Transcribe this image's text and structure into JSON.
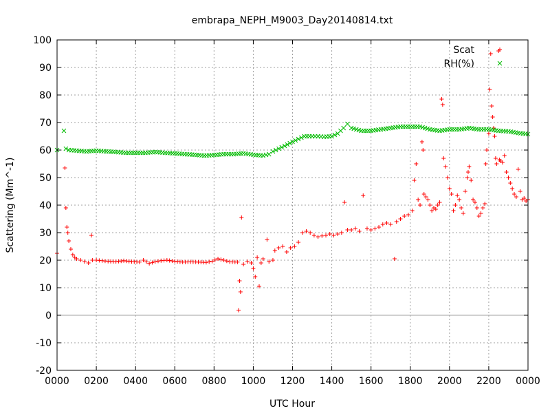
{
  "chart_data": {
    "type": "scatter",
    "title": "embrapa_NEPH_M9003_Day20140814.txt",
    "xlabel": "UTC Hour",
    "ylabel": "Scattering (Mm^-1)",
    "xlim": [
      0,
      24
    ],
    "ylim": [
      -20,
      100
    ],
    "grid": true,
    "legend_position": "top-right",
    "x_ticks": [
      {
        "value": 0,
        "label": "0000"
      },
      {
        "value": 2,
        "label": "0200"
      },
      {
        "value": 4,
        "label": "0400"
      },
      {
        "value": 6,
        "label": "0600"
      },
      {
        "value": 8,
        "label": "0800"
      },
      {
        "value": 10,
        "label": "1000"
      },
      {
        "value": 12,
        "label": "1200"
      },
      {
        "value": 14,
        "label": "1400"
      },
      {
        "value": 16,
        "label": "1600"
      },
      {
        "value": 18,
        "label": "1800"
      },
      {
        "value": 20,
        "label": "2000"
      },
      {
        "value": 22,
        "label": "2200"
      },
      {
        "value": 24,
        "label": "0000"
      }
    ],
    "y_ticks": [
      -20,
      -10,
      0,
      10,
      20,
      30,
      40,
      50,
      60,
      70,
      80,
      90,
      100
    ],
    "series": [
      {
        "name": "Scat",
        "marker": "plus",
        "color": "#ff0000",
        "points": [
          [
            0.0,
            22.5
          ],
          [
            0.4,
            53.5
          ],
          [
            0.45,
            39.0
          ],
          [
            0.5,
            32.0
          ],
          [
            0.55,
            30.0
          ],
          [
            0.6,
            27.0
          ],
          [
            0.7,
            24.0
          ],
          [
            0.8,
            22.0
          ],
          [
            0.9,
            21.0
          ],
          [
            1.0,
            20.5
          ],
          [
            1.2,
            20.0
          ],
          [
            1.4,
            19.5
          ],
          [
            1.6,
            19.0
          ],
          [
            1.75,
            29.0
          ],
          [
            1.8,
            20.0
          ],
          [
            2.0,
            20.0
          ],
          [
            2.3,
            19.8
          ],
          [
            2.6,
            19.6
          ],
          [
            3.0,
            19.5
          ],
          [
            3.4,
            19.8
          ],
          [
            3.8,
            19.5
          ],
          [
            4.2,
            19.3
          ],
          [
            4.4,
            20.0
          ],
          [
            4.7,
            18.8
          ],
          [
            5.0,
            19.5
          ],
          [
            5.3,
            19.8
          ],
          [
            5.6,
            20.0
          ],
          [
            6.0,
            19.6
          ],
          [
            6.4,
            19.3
          ],
          [
            6.8,
            19.4
          ],
          [
            7.2,
            19.3
          ],
          [
            7.6,
            19.2
          ],
          [
            7.9,
            19.6
          ],
          [
            8.2,
            20.5
          ],
          [
            8.5,
            20.0
          ],
          [
            8.8,
            19.4
          ],
          [
            9.2,
            19.3
          ],
          [
            9.25,
            1.8
          ],
          [
            9.3,
            12.5
          ],
          [
            9.35,
            8.5
          ],
          [
            9.4,
            35.5
          ],
          [
            9.5,
            18.5
          ],
          [
            9.7,
            19.5
          ],
          [
            9.9,
            19.0
          ],
          [
            10.0,
            17.0
          ],
          [
            10.1,
            14.0
          ],
          [
            10.2,
            21.0
          ],
          [
            10.3,
            10.5
          ],
          [
            10.4,
            19.0
          ],
          [
            10.5,
            20.5
          ],
          [
            10.7,
            27.5
          ],
          [
            10.8,
            19.5
          ],
          [
            11.0,
            20.0
          ],
          [
            11.1,
            23.5
          ],
          [
            11.3,
            24.5
          ],
          [
            11.5,
            25.0
          ],
          [
            11.7,
            23.0
          ],
          [
            11.9,
            24.5
          ],
          [
            12.1,
            25.0
          ],
          [
            12.3,
            26.5
          ],
          [
            12.5,
            30.0
          ],
          [
            12.7,
            30.5
          ],
          [
            12.9,
            30.0
          ],
          [
            13.1,
            29.0
          ],
          [
            13.3,
            28.5
          ],
          [
            13.5,
            28.8
          ],
          [
            13.7,
            29.0
          ],
          [
            13.9,
            29.5
          ],
          [
            14.1,
            29.0
          ],
          [
            14.3,
            29.5
          ],
          [
            14.5,
            30.0
          ],
          [
            14.65,
            41.0
          ],
          [
            14.8,
            31.0
          ],
          [
            15.0,
            31.0
          ],
          [
            15.2,
            31.5
          ],
          [
            15.4,
            30.5
          ],
          [
            15.6,
            43.5
          ],
          [
            15.8,
            31.5
          ],
          [
            16.0,
            31.0
          ],
          [
            16.2,
            31.5
          ],
          [
            16.4,
            32.0
          ],
          [
            16.6,
            33.0
          ],
          [
            16.8,
            33.5
          ],
          [
            17.0,
            33.0
          ],
          [
            17.2,
            20.5
          ],
          [
            17.3,
            34.0
          ],
          [
            17.5,
            35.0
          ],
          [
            17.7,
            36.0
          ],
          [
            17.9,
            36.5
          ],
          [
            18.1,
            38.0
          ],
          [
            18.2,
            49.0
          ],
          [
            18.3,
            55.0
          ],
          [
            18.4,
            42.0
          ],
          [
            18.5,
            40.0
          ],
          [
            18.6,
            63.0
          ],
          [
            18.65,
            60.0
          ],
          [
            18.7,
            44.0
          ],
          [
            18.8,
            43.0
          ],
          [
            18.9,
            42.0
          ],
          [
            19.0,
            40.0
          ],
          [
            19.1,
            38.0
          ],
          [
            19.2,
            39.0
          ],
          [
            19.3,
            38.5
          ],
          [
            19.4,
            40.0
          ],
          [
            19.5,
            41.0
          ],
          [
            19.6,
            78.5
          ],
          [
            19.65,
            76.5
          ],
          [
            19.7,
            57.0
          ],
          [
            19.8,
            54.0
          ],
          [
            19.9,
            50.0
          ],
          [
            20.0,
            46.0
          ],
          [
            20.1,
            44.0
          ],
          [
            20.2,
            38.0
          ],
          [
            20.3,
            40.0
          ],
          [
            20.4,
            43.5
          ],
          [
            20.5,
            42.0
          ],
          [
            20.6,
            39.0
          ],
          [
            20.7,
            37.0
          ],
          [
            20.8,
            45.0
          ],
          [
            20.9,
            50.0
          ],
          [
            20.95,
            52.0
          ],
          [
            21.0,
            54.0
          ],
          [
            21.1,
            49.0
          ],
          [
            21.2,
            42.0
          ],
          [
            21.3,
            41.0
          ],
          [
            21.4,
            39.0
          ],
          [
            21.5,
            36.0
          ],
          [
            21.6,
            37.0
          ],
          [
            21.7,
            39.0
          ],
          [
            21.8,
            40.5
          ],
          [
            21.85,
            55.0
          ],
          [
            21.9,
            60.0
          ],
          [
            22.0,
            66.0
          ],
          [
            22.05,
            82.0
          ],
          [
            22.1,
            95.0
          ],
          [
            22.15,
            76.0
          ],
          [
            22.2,
            72.0
          ],
          [
            22.25,
            68.0
          ],
          [
            22.3,
            65.0
          ],
          [
            22.35,
            57.0
          ],
          [
            22.4,
            55.0
          ],
          [
            22.5,
            96.0
          ],
          [
            22.55,
            56.5
          ],
          [
            22.6,
            56.0
          ],
          [
            22.7,
            55.5
          ],
          [
            22.8,
            58.0
          ],
          [
            22.9,
            52.0
          ],
          [
            23.0,
            50.0
          ],
          [
            23.1,
            48.0
          ],
          [
            23.2,
            46.0
          ],
          [
            23.3,
            44.0
          ],
          [
            23.4,
            43.0
          ],
          [
            23.5,
            53.0
          ],
          [
            23.6,
            45.0
          ],
          [
            23.7,
            42.0
          ],
          [
            23.8,
            42.5
          ],
          [
            23.9,
            41.5
          ],
          [
            24.0,
            42.0
          ]
        ]
      },
      {
        "name": "RH(%)",
        "marker": "cross",
        "color": "#00bb00",
        "points": [
          [
            0.0,
            60.0
          ],
          [
            0.35,
            67.0
          ],
          [
            0.45,
            60.5
          ],
          [
            0.6,
            60.0
          ],
          [
            1.0,
            59.8
          ],
          [
            1.5,
            59.5
          ],
          [
            2.0,
            59.8
          ],
          [
            2.5,
            59.5
          ],
          [
            3.0,
            59.3
          ],
          [
            3.5,
            59.0
          ],
          [
            4.0,
            59.0
          ],
          [
            4.5,
            59.0
          ],
          [
            5.0,
            59.3
          ],
          [
            5.5,
            59.0
          ],
          [
            6.0,
            58.8
          ],
          [
            6.5,
            58.5
          ],
          [
            7.0,
            58.3
          ],
          [
            7.5,
            58.0
          ],
          [
            8.0,
            58.2
          ],
          [
            8.5,
            58.5
          ],
          [
            9.0,
            58.5
          ],
          [
            9.5,
            58.8
          ],
          [
            10.0,
            58.3
          ],
          [
            10.5,
            58.0
          ],
          [
            10.8,
            58.5
          ],
          [
            11.0,
            59.5
          ],
          [
            11.3,
            60.5
          ],
          [
            11.6,
            61.5
          ],
          [
            12.0,
            63.0
          ],
          [
            12.3,
            64.0
          ],
          [
            12.6,
            65.0
          ],
          [
            13.0,
            65.0
          ],
          [
            13.3,
            65.0
          ],
          [
            13.6,
            64.8
          ],
          [
            14.0,
            65.0
          ],
          [
            14.3,
            66.0
          ],
          [
            14.6,
            68.0
          ],
          [
            14.8,
            69.5
          ],
          [
            15.0,
            68.0
          ],
          [
            15.5,
            67.0
          ],
          [
            16.0,
            67.0
          ],
          [
            16.5,
            67.5
          ],
          [
            17.0,
            68.0
          ],
          [
            17.5,
            68.5
          ],
          [
            18.0,
            68.5
          ],
          [
            18.5,
            68.5
          ],
          [
            19.0,
            67.5
          ],
          [
            19.5,
            67.0
          ],
          [
            20.0,
            67.5
          ],
          [
            20.5,
            67.5
          ],
          [
            21.0,
            68.0
          ],
          [
            21.5,
            67.5
          ],
          [
            22.0,
            67.5
          ],
          [
            22.5,
            67.0
          ],
          [
            23.0,
            66.8
          ],
          [
            23.5,
            66.2
          ],
          [
            24.0,
            65.8
          ]
        ]
      }
    ]
  }
}
